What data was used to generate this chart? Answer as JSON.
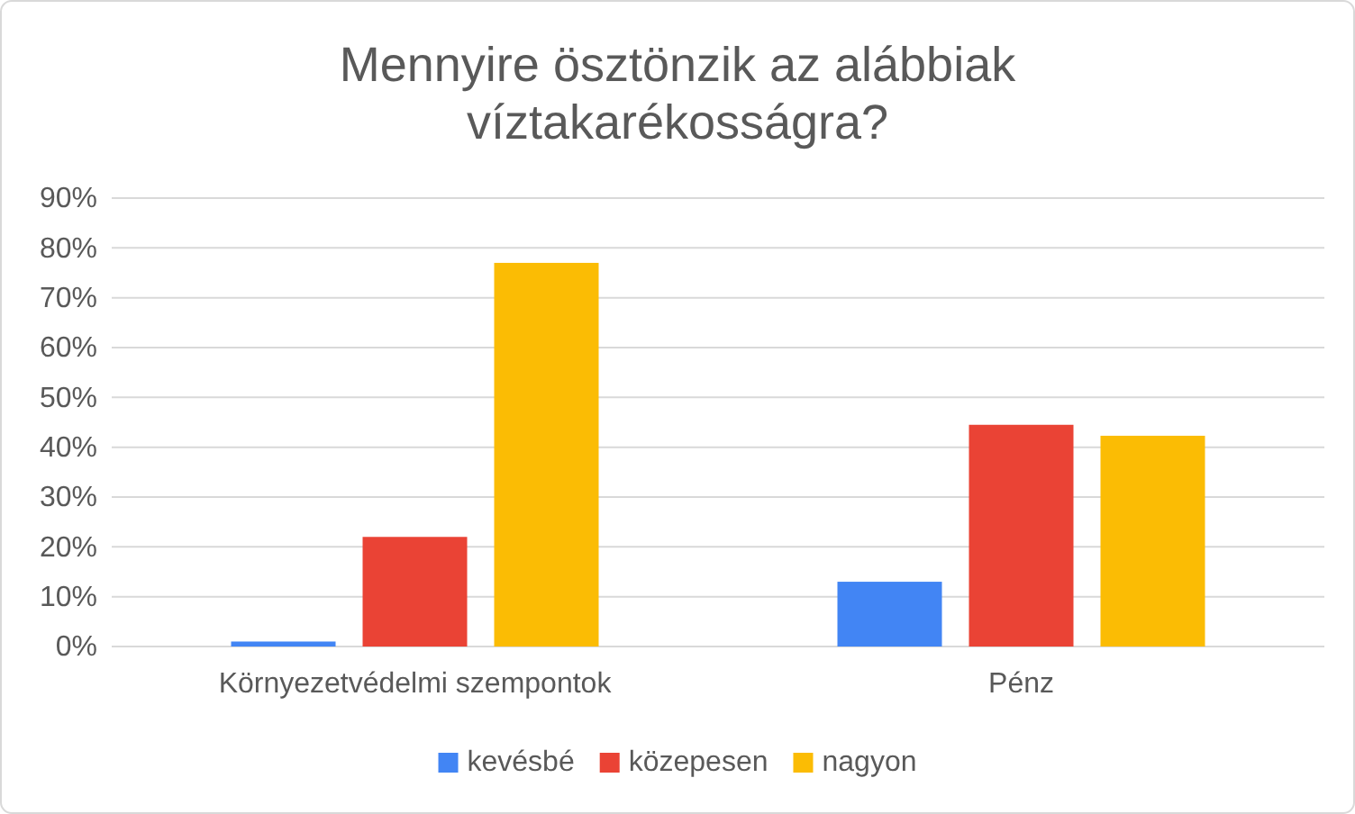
{
  "chart_data": {
    "type": "bar",
    "title": "Mennyire ösztönzik az alábbiak víztakarékosságra?",
    "categories": [
      "Környezetvédelmi szempontok",
      "Pénz"
    ],
    "series": [
      {
        "name": "kevésbé",
        "color": "#4285f4",
        "values": [
          1,
          13
        ]
      },
      {
        "name": "közepesen",
        "color": "#ea4335",
        "values": [
          22,
          44.5
        ]
      },
      {
        "name": "nagyon",
        "color": "#fbbc04",
        "values": [
          77,
          42.3
        ]
      }
    ],
    "ylim": [
      0,
      90
    ],
    "yticks": [
      {
        "value": 0,
        "label": "0%"
      },
      {
        "value": 10,
        "label": "10%"
      },
      {
        "value": 20,
        "label": "20%"
      },
      {
        "value": 30,
        "label": "30%"
      },
      {
        "value": 40,
        "label": "40%"
      },
      {
        "value": 50,
        "label": "50%"
      },
      {
        "value": 60,
        "label": "60%"
      },
      {
        "value": 70,
        "label": "70%"
      },
      {
        "value": 80,
        "label": "80%"
      },
      {
        "value": 90,
        "label": "90%"
      }
    ],
    "grid": "y",
    "legend": "bottom"
  }
}
